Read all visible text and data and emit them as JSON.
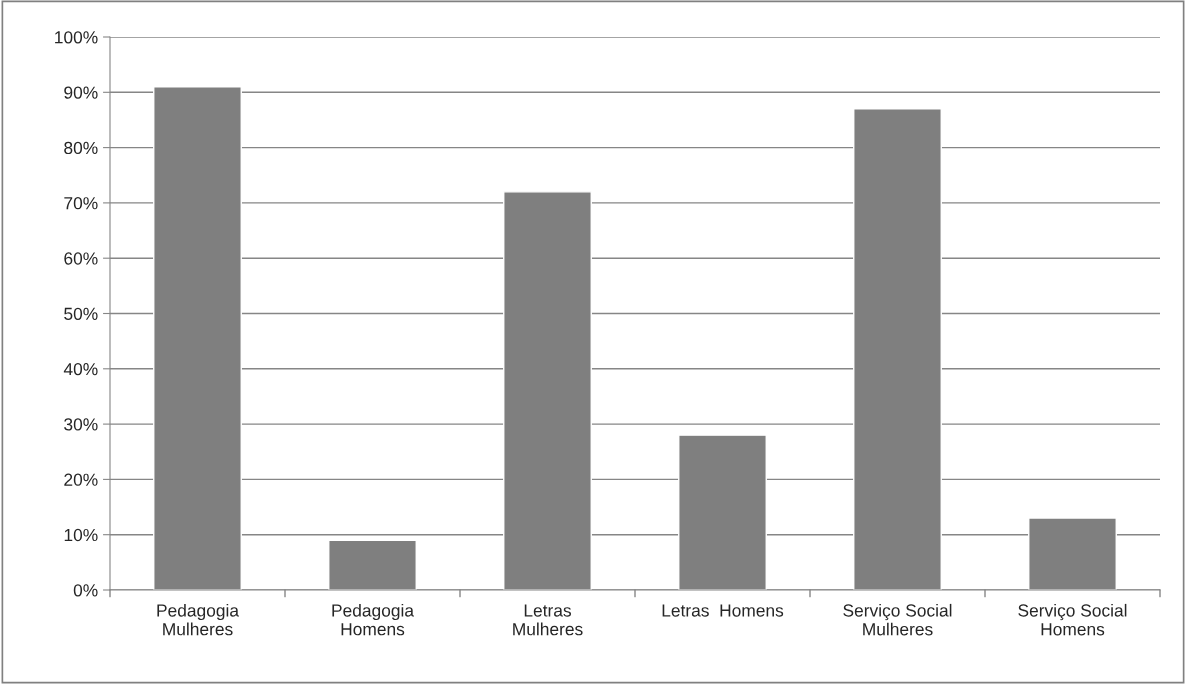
{
  "chart_data": {
    "type": "bar",
    "categories": [
      "Pedagogia\nMulheres",
      "Pedagogia\nHomens",
      "Letras\nMulheres",
      "Letras  Homens",
      "Serviço Social\nMulheres",
      "Serviço Social\nHomens"
    ],
    "values": [
      91,
      9,
      72,
      28,
      87,
      13
    ],
    "color": "#7f7f7f",
    "ylim": [
      0,
      100
    ],
    "yticks": [
      {
        "value": 0,
        "label": "0%"
      },
      {
        "value": 10,
        "label": "10%"
      },
      {
        "value": 20,
        "label": "20%"
      },
      {
        "value": 30,
        "label": "30%"
      },
      {
        "value": 40,
        "label": "40%"
      },
      {
        "value": 50,
        "label": "50%"
      },
      {
        "value": 60,
        "label": "60%"
      },
      {
        "value": 70,
        "label": "70%"
      },
      {
        "value": 80,
        "label": "80%"
      },
      {
        "value": 90,
        "label": "90%"
      },
      {
        "value": 100,
        "label": "100%"
      }
    ],
    "grid": "y",
    "legend": false
  }
}
